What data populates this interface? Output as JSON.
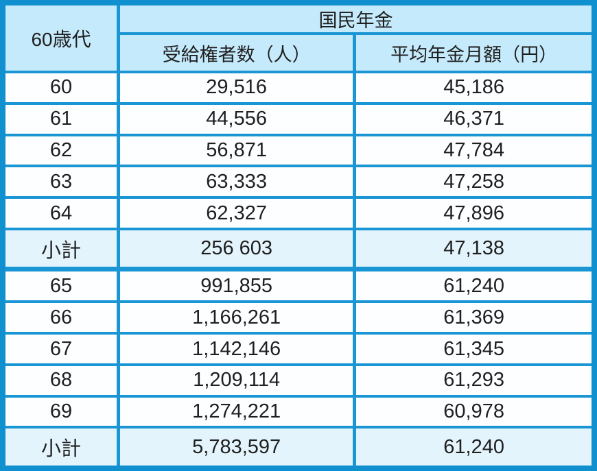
{
  "colors": {
    "border": "#1b96d4",
    "border_outer": "#1090cf",
    "header_bg": "#c5eafb",
    "subtotal_bg": "#e4f4fc",
    "row_bg": "#fcfeff",
    "text": "#1f1f1f"
  },
  "table": {
    "age_header": "60歳代",
    "group_header": "国民年金",
    "columns": [
      "受給権者数（人）",
      "平均年金月額（円）"
    ],
    "rows": [
      {
        "age": "60",
        "recipients": "29,516",
        "average": "45,186",
        "subtotal": false,
        "group_end": false
      },
      {
        "age": "61",
        "recipients": "44,556",
        "average": "46,371",
        "subtotal": false,
        "group_end": false
      },
      {
        "age": "62",
        "recipients": "56,871",
        "average": "47,784",
        "subtotal": false,
        "group_end": false
      },
      {
        "age": "63",
        "recipients": "63,333",
        "average": "47,258",
        "subtotal": false,
        "group_end": false
      },
      {
        "age": "64",
        "recipients": "62,327",
        "average": "47,896",
        "subtotal": false,
        "group_end": false
      },
      {
        "age": "小計",
        "recipients": "256 603",
        "average": "47,138",
        "subtotal": true,
        "group_end": true
      },
      {
        "age": "65",
        "recipients": "991,855",
        "average": "61,240",
        "subtotal": false,
        "group_end": false
      },
      {
        "age": "66",
        "recipients": "1,166,261",
        "average": "61,369",
        "subtotal": false,
        "group_end": false
      },
      {
        "age": "67",
        "recipients": "1,142,146",
        "average": "61,345",
        "subtotal": false,
        "group_end": false
      },
      {
        "age": "68",
        "recipients": "1,209,114",
        "average": "61,293",
        "subtotal": false,
        "group_end": false
      },
      {
        "age": "69",
        "recipients": "1,274,221",
        "average": "60,978",
        "subtotal": false,
        "group_end": false
      },
      {
        "age": "小計",
        "recipients": "5,783,597",
        "average": "61,240",
        "subtotal": true,
        "group_end": false
      }
    ]
  },
  "chart_data": {
    "type": "table",
    "title": "国民年金",
    "row_header": "60歳代",
    "columns": [
      "受給権者数（人）",
      "平均年金月額（円）"
    ],
    "categories": [
      "60",
      "61",
      "62",
      "63",
      "64",
      "小計",
      "65",
      "66",
      "67",
      "68",
      "69",
      "小計"
    ],
    "series": [
      {
        "name": "受給権者数（人）",
        "values": [
          29516,
          44556,
          56871,
          63333,
          62327,
          256603,
          991855,
          1166261,
          1142146,
          1209114,
          1274221,
          5783597
        ]
      },
      {
        "name": "平均年金月額（円）",
        "values": [
          45186,
          46371,
          47784,
          47258,
          47896,
          47138,
          61240,
          61369,
          61345,
          61293,
          60978,
          61240
        ]
      }
    ],
    "layout": {
      "subtotal_rows": [
        5,
        11
      ],
      "grid": true,
      "header_fill": "#c5eafb",
      "subtotal_fill": "#e4f4fc"
    }
  }
}
